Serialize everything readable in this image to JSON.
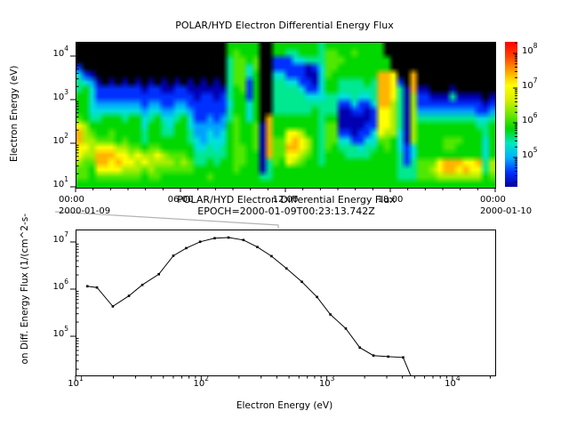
{
  "figure": {
    "background": "#ffffff"
  },
  "top_chart": {
    "title": "POLAR/HYD  Electron Differential Energy Flux",
    "ylabel": "Electron Energy (eV)",
    "x_tick_labels": [
      "00:00",
      "06:00",
      "12:00",
      "18:00",
      "00:00"
    ],
    "x_date_left": "2000-01-09",
    "x_date_right": "2000-01-10",
    "y_tick_exponents": [
      1,
      2,
      3,
      4
    ],
    "colorbar_tick_exponents": [
      5,
      6,
      7,
      8
    ]
  },
  "bottom_chart": {
    "title": "POLAR/HYD  Electron Differential Energy Flux",
    "subtitle": "EPOCH=2000-01-09T00:23:13.742Z",
    "xlabel": "Electron Energy (eV)",
    "ylabel": "on Diff. Energy Flux (1/(cm^2-s-",
    "x_tick_exponents": [
      1,
      2,
      3,
      4
    ],
    "y_tick_exponents": [
      5,
      6,
      7
    ]
  },
  "chart_data": [
    {
      "type": "heatmap",
      "title": "POLAR/HYD  Electron Differential Energy Flux",
      "xlabel_ticks": [
        "00:00",
        "06:00",
        "12:00",
        "18:00",
        "00:00"
      ],
      "time_start": "2000-01-09 00:00",
      "time_end": "2000-01-10 00:00",
      "ylabel": "Electron Energy (eV)",
      "energy_range_eV": [
        10,
        21000
      ],
      "colorbar_range_log10_flux": [
        4.15,
        8.33
      ],
      "colorbar_tick_exponents": [
        5,
        6,
        7,
        8
      ],
      "legend_position": "right-colorbar",
      "grid_on": false,
      "level_order": "0123456789ab",
      "level_log10_flux": [
        null,
        4.8,
        5.05,
        5.3,
        5.55,
        5.8,
        6.1,
        6.4,
        6.7,
        7.0,
        7.35,
        7.7
      ],
      "level_colors": [
        "#000000",
        "#0000b0",
        "#0030ff",
        "#00a0ff",
        "#00e0e0",
        "#00e890",
        "#00d800",
        "#50e800",
        "#a8f000",
        "#ffff00",
        "#ffb400",
        "#ff3000"
      ],
      "colorbar_colors_bottom_to_top": [
        "#0000a0",
        "#0030ff",
        "#00b0ff",
        "#00e8c0",
        "#00d800",
        "#70e800",
        "#d8f000",
        "#ffff00",
        "#ffa000",
        "#ff4000",
        "#ff0000"
      ],
      "grid_rows_top_to_bottom": [
        "0000000000000000000000066666006666666566666666600000000000000000",
        "0000000000000000000000067666006655666577667666600000000000000000",
        "0000000000000000000000057767002224455577766666660000000000000000",
        "2000000000000000000000057747002222212477666666660000000000000000",
        "4210000000000000000000057746004422211476666666aa900a000000000000",
        "5431010101010101010101057726005544221466555565aa920a000000000000",
        "5642222222122112211111156726005555422466555555aa951a110001000000",
        "6642222222222222221221256626005555544455445445aa9518221115111101",
        "6643333333233223322222246646005555555555224224aa8518222222222212",
        "6644444444344334432222256646005555556555112212998518333333333223",
        "76556665664564456422323576460a6666666566111112998518555555555445",
        "98666666664665466433333676671a6666666577111122998518666666666556",
        "a8766766665665566533434676671a6699866577221224988418666666666656",
        "a8877767665666666543444676671a779a986577442244776418666677766646",
        "99899988776776666644545677671a77aa986576555455676424666677666646",
        "988aaa99898898777655555677661a7799876566655556666524666666666646",
        "877aa9a9989888878755656677661576987665666666666665257779aaa99a58",
        "77699998887877777766666676661566666666666666666665557789aa9a9958",
        "7767777777677666666676666666556666666666666666666555777888888867",
        "6666666666666666666666666666666666666666666666666666666666666666"
      ]
    },
    {
      "type": "line",
      "title": "POLAR/HYD  Electron Differential Energy Flux",
      "subtitle": "EPOCH=2000-01-09T00:23:13.742Z",
      "xlabel": "Electron Energy (eV)",
      "ylabel": "on Diff. Energy Flux (1/(cm^2-s-",
      "x_log": true,
      "y_log": true,
      "xlim": [
        10,
        21900
      ],
      "ylim": [
        14800,
        18400000
      ],
      "marker": "dot",
      "line_color": "#000000",
      "x_energies_eV": [
        12.4,
        14.8,
        19.8,
        26.6,
        34,
        46,
        60,
        76,
        98,
        128,
        165,
        217,
        280,
        363,
        477,
        633,
        836,
        1067,
        1416,
        1831,
        2350,
        3083,
        4050,
        4800
      ],
      "y_flux": [
        1150000,
        1080000,
        430000,
        720000,
        1230000,
        2070000,
        5100000,
        7400000,
        10100000,
        12000000,
        12400000,
        11000000,
        7800000,
        5000000,
        2750000,
        1430000,
        680000,
        290000,
        146000,
        57500,
        39000,
        37000,
        35600,
        12000
      ]
    }
  ]
}
